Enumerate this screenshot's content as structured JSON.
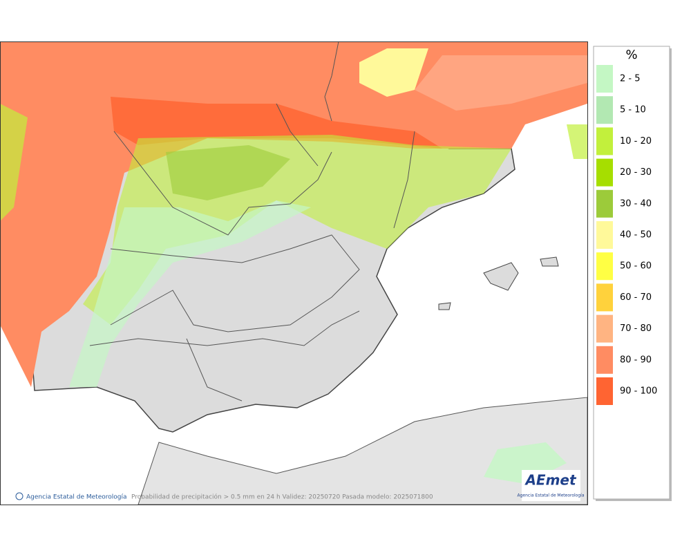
{
  "legend": {
    "title": "%",
    "items": [
      {
        "label": "2 - 5",
        "color": "#c4f7c4"
      },
      {
        "label": "5 - 10",
        "color": "#b2e8b2"
      },
      {
        "label": "10 - 20",
        "color": "#c2f03c"
      },
      {
        "label": "20 - 30",
        "color": "#a6de00"
      },
      {
        "label": "30 - 40",
        "color": "#9ccb3a"
      },
      {
        "label": "40 - 50",
        "color": "#fff99a"
      },
      {
        "label": "50 - 60",
        "color": "#ffff44"
      },
      {
        "label": "60 - 70",
        "color": "#ffd23c"
      },
      {
        "label": "70 - 80",
        "color": "#ffb482"
      },
      {
        "label": "80 - 90",
        "color": "#ff8c62"
      },
      {
        "label": "90 - 100",
        "color": "#ff6432"
      }
    ]
  },
  "footer": {
    "credit": "Agencia Estatal de Meteorología",
    "caption": "Probabilidad de precipitación > 0.5 mm en 24 h Validez: 20250720 Pasada modelo: 2025071800"
  },
  "logo": {
    "name": "AEmet",
    "subtitle": "Agencia Estatal de Meteorología"
  }
}
